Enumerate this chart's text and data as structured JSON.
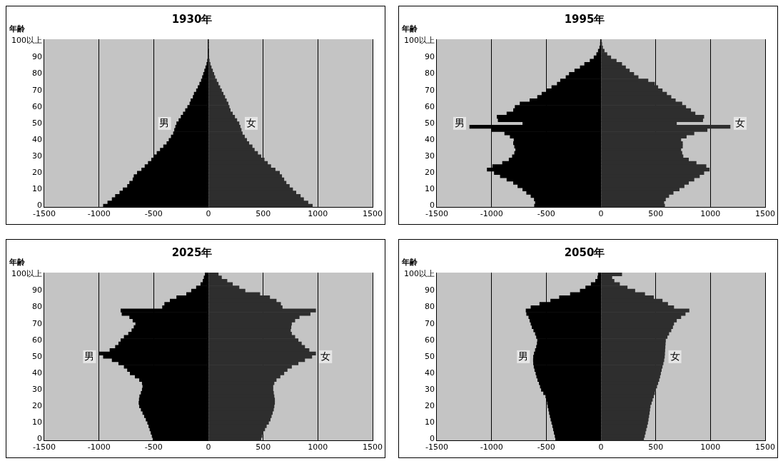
{
  "chart_data": [
    {
      "type": "bar",
      "title": "1930年",
      "ylabel": "年齢",
      "orientation": "horizontal",
      "stacked": true,
      "legend": false,
      "grid": "x",
      "categories": [
        "100以上",
        null,
        null,
        null,
        null,
        "90",
        null,
        null,
        null,
        null,
        "80",
        null,
        null,
        null,
        null,
        "70",
        null,
        null,
        null,
        null,
        "60",
        null,
        null,
        null,
        null,
        "50",
        null,
        null,
        null,
        null,
        "40",
        null,
        null,
        null,
        null,
        "30",
        null,
        null,
        null,
        null,
        "20",
        null,
        null,
        null,
        null,
        "10",
        null,
        null,
        null,
        null,
        "0"
      ],
      "xlim": [
        -1500,
        1500
      ],
      "xticks": [
        -1500,
        -1000,
        -500,
        0,
        500,
        1000,
        1500
      ],
      "series": [
        {
          "name": "男",
          "color": "#000000",
          "values": [
            0,
            0,
            0,
            -1,
            -2,
            -4,
            -8,
            -15,
            -25,
            -35,
            -45,
            -55,
            -65,
            -80,
            -95,
            -110,
            -130,
            -140,
            -160,
            -170,
            -190,
            -210,
            -230,
            -250,
            -270,
            -290,
            -300,
            -310,
            -320,
            -340,
            -360,
            -380,
            -410,
            -440,
            -470,
            -500,
            -520,
            -550,
            -580,
            -610,
            -650,
            -680,
            -690,
            -720,
            -740,
            -780,
            -810,
            -850,
            -880,
            -920,
            -960
          ]
        },
        {
          "name": "女",
          "color": "#2e2e2e",
          "values": [
            0,
            0,
            0,
            1,
            2,
            5,
            9,
            16,
            26,
            38,
            50,
            60,
            75,
            90,
            105,
            120,
            135,
            150,
            165,
            180,
            190,
            200,
            220,
            240,
            260,
            280,
            290,
            300,
            310,
            330,
            350,
            370,
            400,
            420,
            450,
            480,
            510,
            540,
            570,
            610,
            650,
            670,
            690,
            710,
            740,
            770,
            800,
            840,
            870,
            910,
            950
          ]
        }
      ]
    },
    {
      "type": "bar",
      "title": "1995年",
      "ylabel": "年齢",
      "orientation": "horizontal",
      "stacked": true,
      "legend": false,
      "grid": "x",
      "categories": [
        "100以上",
        null,
        null,
        null,
        null,
        "90",
        null,
        null,
        null,
        null,
        "80",
        null,
        null,
        null,
        null,
        "70",
        null,
        null,
        null,
        null,
        "60",
        null,
        null,
        null,
        null,
        "50",
        null,
        null,
        null,
        null,
        "40",
        null,
        null,
        null,
        null,
        "30",
        null,
        null,
        null,
        null,
        "20",
        null,
        null,
        null,
        null,
        "10",
        null,
        null,
        null,
        null,
        "0"
      ],
      "xlim": [
        -1500,
        1500
      ],
      "xticks": [
        -1500,
        -1000,
        -500,
        0,
        500,
        1000,
        1500
      ],
      "series": [
        {
          "name": "男",
          "color": "#000000",
          "values": [
            -5,
            -6,
            -12,
            -25,
            -40,
            -64,
            -100,
            -150,
            -190,
            -240,
            -290,
            -320,
            -370,
            -400,
            -450,
            -500,
            -540,
            -580,
            -650,
            -740,
            -785,
            -800,
            -860,
            -950,
            -940,
            -715,
            -1200,
            -1000,
            -880,
            -830,
            -795,
            -800,
            -790,
            -780,
            -790,
            -810,
            -840,
            -900,
            -990,
            -1040,
            -975,
            -920,
            -860,
            -800,
            -760,
            -715,
            -680,
            -640,
            -610,
            -600,
            -608
          ]
        },
        {
          "name": "女",
          "color": "#2e2e2e",
          "values": [
            5,
            8,
            15,
            30,
            55,
            90,
            140,
            190,
            225,
            260,
            300,
            340,
            430,
            490,
            520,
            560,
            600,
            640,
            680,
            740,
            775,
            820,
            860,
            940,
            930,
            690,
            1180,
            970,
            850,
            780,
            730,
            745,
            745,
            730,
            740,
            750,
            800,
            870,
            960,
            990,
            940,
            900,
            850,
            800,
            760,
            715,
            660,
            620,
            590,
            575,
            582
          ]
        }
      ]
    },
    {
      "type": "bar",
      "title": "2025年",
      "ylabel": "年齢",
      "orientation": "horizontal",
      "stacked": true,
      "legend": false,
      "grid": "x",
      "categories": [
        "100以上",
        null,
        null,
        null,
        null,
        "90",
        null,
        null,
        null,
        null,
        "80",
        null,
        null,
        null,
        null,
        "70",
        null,
        null,
        null,
        null,
        "60",
        null,
        null,
        null,
        null,
        "50",
        null,
        null,
        null,
        null,
        "40",
        null,
        null,
        null,
        null,
        "30",
        null,
        null,
        null,
        null,
        "20",
        null,
        null,
        null,
        null,
        "10",
        null,
        null,
        null,
        null,
        "0"
      ],
      "xlim": [
        -1500,
        1500
      ],
      "xticks": [
        -1500,
        -1000,
        -500,
        0,
        500,
        1000,
        1500
      ],
      "series": [
        {
          "name": "男",
          "color": "#000000",
          "values": [
            -30,
            -40,
            -50,
            -70,
            -110,
            -155,
            -200,
            -290,
            -350,
            -400,
            -420,
            -800,
            -790,
            -720,
            -690,
            -665,
            -680,
            -700,
            -730,
            -770,
            -800,
            -820,
            -850,
            -900,
            -995,
            -960,
            -880,
            -820,
            -770,
            -740,
            -715,
            -670,
            -630,
            -605,
            -600,
            -605,
            -615,
            -628,
            -632,
            -635,
            -630,
            -615,
            -600,
            -585,
            -570,
            -556,
            -545,
            -535,
            -525,
            -515,
            -507
          ]
        },
        {
          "name": "女",
          "color": "#2e2e2e",
          "values": [
            90,
            120,
            170,
            220,
            280,
            335,
            470,
            560,
            620,
            660,
            675,
            980,
            930,
            830,
            790,
            760,
            755,
            750,
            760,
            790,
            820,
            850,
            880,
            920,
            980,
            945,
            880,
            820,
            760,
            720,
            690,
            655,
            620,
            600,
            590,
            590,
            595,
            600,
            605,
            605,
            600,
            595,
            585,
            575,
            565,
            550,
            530,
            515,
            500,
            490,
            480
          ]
        }
      ]
    },
    {
      "type": "bar",
      "title": "2050年",
      "ylabel": "年齢",
      "orientation": "horizontal",
      "stacked": true,
      "legend": false,
      "grid": "x",
      "categories": [
        "100以上",
        null,
        null,
        null,
        null,
        "90",
        null,
        null,
        null,
        null,
        "80",
        null,
        null,
        null,
        null,
        "70",
        null,
        null,
        null,
        null,
        "60",
        null,
        null,
        null,
        null,
        "50",
        null,
        null,
        null,
        null,
        "40",
        null,
        null,
        null,
        null,
        "30",
        null,
        null,
        null,
        null,
        "20",
        null,
        null,
        null,
        null,
        "10",
        null,
        null,
        null,
        null,
        "0"
      ],
      "xlim": [
        -1500,
        1500
      ],
      "xticks": [
        -1500,
        -1000,
        -500,
        0,
        500,
        1000,
        1500
      ],
      "series": [
        {
          "name": "男",
          "color": "#000000",
          "values": [
            -25,
            -30,
            -50,
            -90,
            -140,
            -190,
            -280,
            -380,
            -460,
            -560,
            -640,
            -685,
            -680,
            -660,
            -650,
            -640,
            -630,
            -615,
            -600,
            -590,
            -580,
            -583,
            -590,
            -600,
            -610,
            -617,
            -618,
            -617,
            -612,
            -605,
            -595,
            -588,
            -578,
            -565,
            -555,
            -545,
            -525,
            -505,
            -497,
            -490,
            -485,
            -478,
            -472,
            -465,
            -458,
            -450,
            -442,
            -435,
            -428,
            -420,
            -415
          ]
        },
        {
          "name": "女",
          "color": "#2e2e2e",
          "values": [
            190,
            100,
            120,
            170,
            240,
            310,
            400,
            480,
            560,
            610,
            665,
            805,
            770,
            730,
            690,
            665,
            655,
            640,
            620,
            605,
            590,
            588,
            586,
            584,
            582,
            580,
            575,
            568,
            560,
            552,
            545,
            538,
            530,
            520,
            510,
            500,
            490,
            480,
            470,
            460,
            450,
            446,
            442,
            437,
            432,
            427,
            420,
            412,
            405,
            398,
            390
          ]
        }
      ]
    }
  ]
}
